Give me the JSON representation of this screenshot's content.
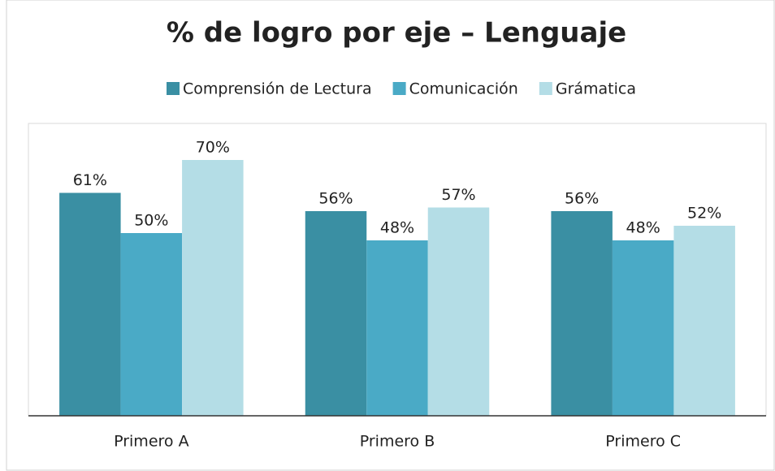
{
  "chart_data": {
    "type": "bar",
    "title": "% de logro por eje – Lenguaje",
    "categories": [
      "Primero A",
      "Primero B",
      "Primero C"
    ],
    "series": [
      {
        "name": "Comprensión de Lectura",
        "color": "#3a8fa3",
        "values": [
          61,
          56,
          56
        ],
        "value_labels": [
          "61%",
          "56%",
          "56%"
        ]
      },
      {
        "name": "Comunicación",
        "color": "#4aaac6",
        "values": [
          50,
          48,
          48
        ],
        "value_labels": [
          "50%",
          "48%",
          "48%"
        ]
      },
      {
        "name": "Grámatica",
        "color": "#b4dde6",
        "values": [
          70,
          57,
          52
        ],
        "value_labels": [
          "70%",
          "57%",
          "52%"
        ]
      }
    ],
    "ylim": [
      0,
      80
    ],
    "legend": "top"
  }
}
